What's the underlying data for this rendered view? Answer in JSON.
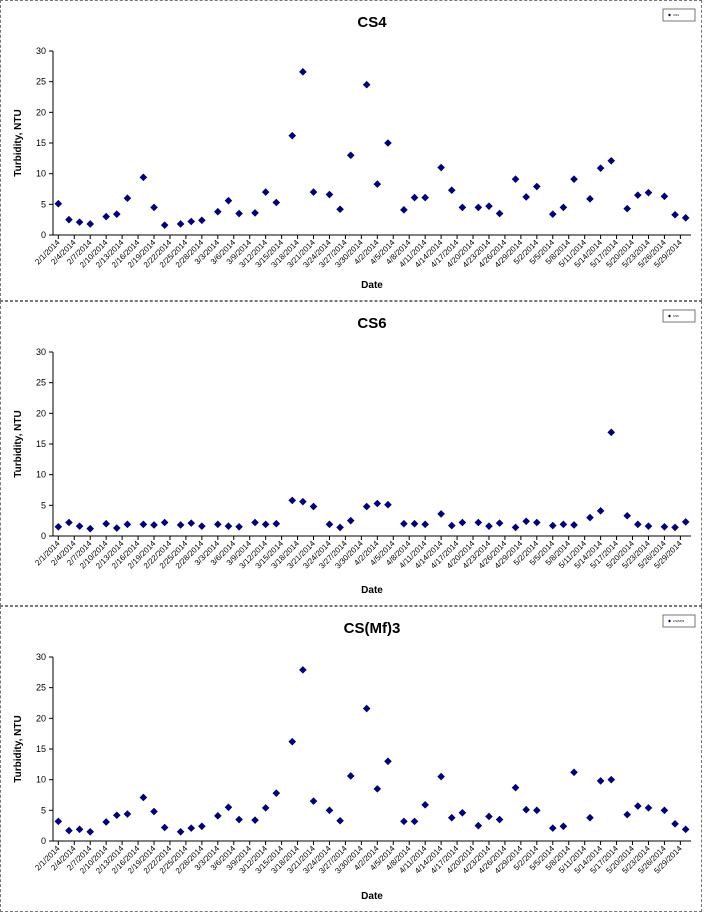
{
  "chart_data": [
    {
      "type": "scatter",
      "title": "CS4",
      "xlabel": "Date",
      "ylabel": "Turbidity, NTU",
      "ylim": [
        0,
        30
      ],
      "yticks": [
        0,
        5,
        10,
        15,
        20,
        25,
        30
      ],
      "grid": false,
      "legend": "top-right",
      "marker_color": "#00007a",
      "xtick_labels": [
        "2/1/2014",
        "2/4/2014",
        "2/7/2014",
        "2/10/2014",
        "2/13/2014",
        "2/16/2014",
        "2/19/2014",
        "2/22/2014",
        "2/25/2014",
        "2/28/2014",
        "3/3/2014",
        "3/6/2014",
        "3/9/2014",
        "3/12/2014",
        "3/15/2014",
        "3/18/2014",
        "3/21/2014",
        "3/24/2014",
        "3/27/2014",
        "3/30/2014",
        "4/2/2014",
        "4/5/2014",
        "4/8/2014",
        "4/11/2014",
        "4/14/2014",
        "4/17/2014",
        "4/20/2014",
        "4/23/2014",
        "4/26/2014",
        "4/29/2014",
        "5/2/2014",
        "5/5/2014",
        "5/8/2014",
        "5/11/2014",
        "5/14/2014",
        "5/17/2014",
        "5/20/2014",
        "5/23/2014",
        "5/26/2014",
        "5/29/2014"
      ],
      "x": [
        "2/1/2014",
        "2/3/2014",
        "2/5/2014",
        "2/7/2014",
        "2/10/2014",
        "2/12/2014",
        "2/14/2014",
        "2/17/2014",
        "2/19/2014",
        "2/21/2014",
        "2/24/2014",
        "2/26/2014",
        "2/28/2014",
        "3/3/2014",
        "3/5/2014",
        "3/7/2014",
        "3/10/2014",
        "3/12/2014",
        "3/14/2014",
        "3/17/2014",
        "3/19/2014",
        "3/21/2014",
        "3/24/2014",
        "3/26/2014",
        "3/28/2014",
        "3/31/2014",
        "4/2/2014",
        "4/4/2014",
        "4/7/2014",
        "4/9/2014",
        "4/11/2014",
        "4/14/2014",
        "4/16/2014",
        "4/18/2014",
        "4/21/2014",
        "4/23/2014",
        "4/25/2014",
        "4/28/2014",
        "4/30/2014",
        "5/2/2014",
        "5/5/2014",
        "5/7/2014",
        "5/9/2014",
        "5/12/2014",
        "5/14/2014",
        "5/16/2014",
        "5/19/2014",
        "5/21/2014",
        "5/23/2014",
        "5/26/2014",
        "5/28/2014",
        "5/30/2014"
      ],
      "y": [
        5.1,
        2.5,
        2.1,
        1.8,
        3.0,
        3.4,
        6.0,
        9.4,
        4.5,
        1.6,
        1.8,
        2.2,
        2.4,
        3.8,
        5.6,
        3.5,
        3.6,
        7.0,
        5.3,
        16.2,
        26.6,
        7.0,
        6.6,
        4.2,
        13.0,
        24.5,
        8.3,
        15.0,
        4.1,
        6.1,
        6.1,
        11.0,
        7.3,
        4.5,
        4.5,
        4.7,
        3.5,
        9.1,
        6.2,
        7.9,
        3.4,
        4.5,
        9.1,
        5.9,
        10.9,
        12.1,
        4.3,
        6.5,
        6.9,
        6.3,
        3.3,
        2.8
      ]
    },
    {
      "type": "scatter",
      "title": "CS6",
      "xlabel": "Date",
      "ylabel": "Turbidity, NTU",
      "ylim": [
        0,
        30
      ],
      "yticks": [
        0,
        5,
        10,
        15,
        20,
        25,
        30
      ],
      "grid": false,
      "legend": "top-right",
      "marker_color": "#00007a",
      "xtick_labels": [
        "2/1/2014",
        "2/4/2014",
        "2/7/2014",
        "2/10/2014",
        "2/13/2014",
        "2/16/2014",
        "2/19/2014",
        "2/22/2014",
        "2/25/2014",
        "2/28/2014",
        "3/3/2014",
        "3/6/2014",
        "3/9/2014",
        "3/12/2014",
        "3/15/2014",
        "3/18/2014",
        "3/21/2014",
        "3/24/2014",
        "3/27/2014",
        "3/30/2014",
        "4/2/2014",
        "4/5/2014",
        "4/8/2014",
        "4/11/2014",
        "4/14/2014",
        "4/17/2014",
        "4/20/2014",
        "4/23/2014",
        "4/26/2014",
        "4/29/2014",
        "5/2/2014",
        "5/5/2014",
        "5/8/2014",
        "5/11/2014",
        "5/14/2014",
        "5/17/2014",
        "5/20/2014",
        "5/23/2014",
        "5/26/2014",
        "5/29/2014"
      ],
      "x": [
        "2/1/2014",
        "2/3/2014",
        "2/5/2014",
        "2/7/2014",
        "2/10/2014",
        "2/12/2014",
        "2/14/2014",
        "2/17/2014",
        "2/19/2014",
        "2/21/2014",
        "2/24/2014",
        "2/26/2014",
        "2/28/2014",
        "3/3/2014",
        "3/5/2014",
        "3/7/2014",
        "3/10/2014",
        "3/12/2014",
        "3/14/2014",
        "3/17/2014",
        "3/19/2014",
        "3/21/2014",
        "3/24/2014",
        "3/26/2014",
        "3/28/2014",
        "3/31/2014",
        "4/2/2014",
        "4/4/2014",
        "4/7/2014",
        "4/9/2014",
        "4/11/2014",
        "4/14/2014",
        "4/16/2014",
        "4/18/2014",
        "4/21/2014",
        "4/23/2014",
        "4/25/2014",
        "4/28/2014",
        "4/30/2014",
        "5/2/2014",
        "5/5/2014",
        "5/7/2014",
        "5/9/2014",
        "5/12/2014",
        "5/14/2014",
        "5/16/2014",
        "5/19/2014",
        "5/21/2014",
        "5/23/2014",
        "5/26/2014",
        "5/28/2014",
        "5/30/2014"
      ],
      "y": [
        1.5,
        2.2,
        1.6,
        1.2,
        2.0,
        1.3,
        1.9,
        1.9,
        1.8,
        2.2,
        1.8,
        2.1,
        1.6,
        1.9,
        1.6,
        1.5,
        2.2,
        1.9,
        2.0,
        5.8,
        5.6,
        4.8,
        1.9,
        1.4,
        2.5,
        4.8,
        5.3,
        5.1,
        2.0,
        2.0,
        1.9,
        3.6,
        1.7,
        2.2,
        2.2,
        1.6,
        2.1,
        1.4,
        2.4,
        2.2,
        1.7,
        1.9,
        1.8,
        3.0,
        4.1,
        16.9,
        3.3,
        1.9,
        1.6,
        1.5,
        1.4,
        2.3
      ]
    },
    {
      "type": "scatter",
      "title": "CS(Mf)3",
      "xlabel": "Date",
      "ylabel": "Turbidity, NTU",
      "ylim": [
        0,
        30
      ],
      "yticks": [
        0,
        5,
        10,
        15,
        20,
        25,
        30
      ],
      "grid": false,
      "legend": "top-right",
      "marker_color": "#00007a",
      "xtick_labels": [
        "2/1/2014",
        "2/4/2014",
        "2/7/2014",
        "2/10/2014",
        "2/13/2014",
        "2/16/2014",
        "2/19/2014",
        "2/22/2014",
        "2/25/2014",
        "2/28/2014",
        "3/3/2014",
        "3/6/2014",
        "3/9/2014",
        "3/12/2014",
        "3/15/2014",
        "3/18/2014",
        "3/21/2014",
        "3/24/2014",
        "3/27/2014",
        "3/30/2014",
        "4/2/2014",
        "4/5/2014",
        "4/8/2014",
        "4/11/2014",
        "4/14/2014",
        "4/17/2014",
        "4/20/2014",
        "4/23/2014",
        "4/26/2014",
        "4/29/2014",
        "5/2/2014",
        "5/5/2014",
        "5/8/2014",
        "5/11/2014",
        "5/14/2014",
        "5/17/2014",
        "5/20/2014",
        "5/23/2014",
        "5/26/2014",
        "5/29/2014"
      ],
      "x": [
        "2/1/2014",
        "2/3/2014",
        "2/5/2014",
        "2/7/2014",
        "2/10/2014",
        "2/12/2014",
        "2/14/2014",
        "2/17/2014",
        "2/19/2014",
        "2/21/2014",
        "2/24/2014",
        "2/26/2014",
        "2/28/2014",
        "3/3/2014",
        "3/5/2014",
        "3/7/2014",
        "3/10/2014",
        "3/12/2014",
        "3/14/2014",
        "3/17/2014",
        "3/19/2014",
        "3/21/2014",
        "3/24/2014",
        "3/26/2014",
        "3/28/2014",
        "3/31/2014",
        "4/2/2014",
        "4/4/2014",
        "4/7/2014",
        "4/9/2014",
        "4/11/2014",
        "4/14/2014",
        "4/16/2014",
        "4/18/2014",
        "4/21/2014",
        "4/23/2014",
        "4/25/2014",
        "4/28/2014",
        "4/30/2014",
        "5/2/2014",
        "5/5/2014",
        "5/7/2014",
        "5/9/2014",
        "5/12/2014",
        "5/14/2014",
        "5/16/2014",
        "5/19/2014",
        "5/21/2014",
        "5/23/2014",
        "5/26/2014",
        "5/28/2014",
        "5/30/2014"
      ],
      "y": [
        3.2,
        1.7,
        1.9,
        1.5,
        3.1,
        4.2,
        4.4,
        7.1,
        4.8,
        2.2,
        1.5,
        2.1,
        2.4,
        4.1,
        5.5,
        3.5,
        3.4,
        5.4,
        7.8,
        16.2,
        27.9,
        6.5,
        5.0,
        3.3,
        10.6,
        21.6,
        8.5,
        13.0,
        3.2,
        3.2,
        5.9,
        10.5,
        3.8,
        4.6,
        2.5,
        4.0,
        3.5,
        8.7,
        5.1,
        5.0,
        2.1,
        2.4,
        11.2,
        3.8,
        9.8,
        10.0,
        4.3,
        5.7,
        5.4,
        5.0,
        2.8,
        1.9
      ]
    }
  ]
}
